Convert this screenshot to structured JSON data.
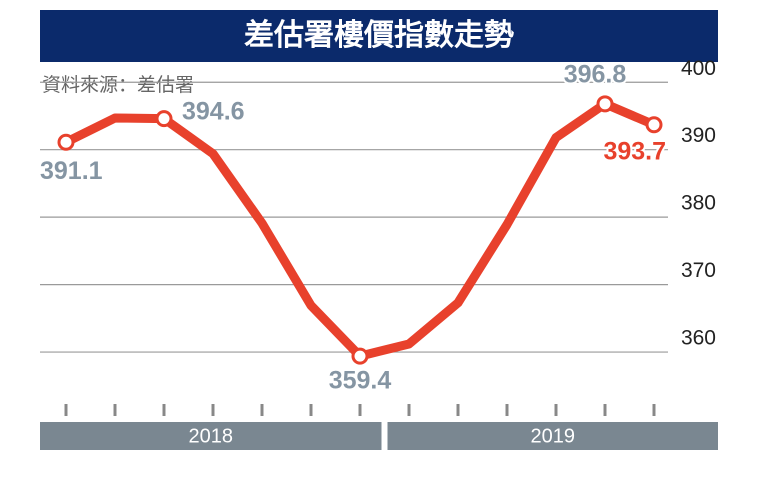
{
  "chart_data": {
    "type": "line",
    "title": "差估署樓價指數走勢",
    "source": "資料來源：差估署",
    "categories": [
      null,
      null,
      null,
      null,
      null,
      null,
      null,
      null,
      null,
      null,
      null,
      null,
      null
    ],
    "x_groups": [
      "2018",
      "2019"
    ],
    "series": [
      {
        "name": null,
        "color": "#e8412c",
        "values": [
          391.1,
          394.7,
          394.6,
          389.4,
          379.1,
          366.9,
          359.4,
          361.2,
          367.3,
          378.9,
          391.8,
          396.8,
          393.7
        ],
        "value_labels": [
          "391.1",
          null,
          "394.6",
          null,
          null,
          null,
          "359.4",
          null,
          null,
          null,
          null,
          "396.8",
          "393.7"
        ]
      }
    ],
    "ylim": [
      352,
      403
    ],
    "yticks": [
      360,
      370,
      380,
      390,
      400
    ],
    "grid": true
  }
}
